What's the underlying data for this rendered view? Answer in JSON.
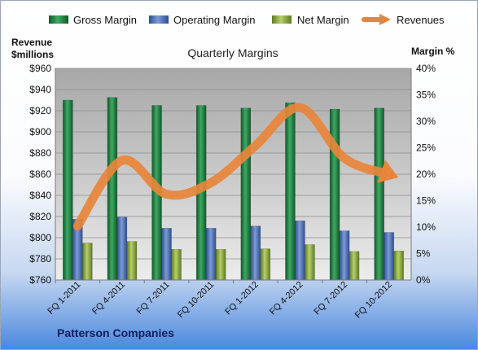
{
  "chart_data": {
    "type": "bar",
    "title": "Quarterly Margins",
    "left_axis_label_line1": "Revenue",
    "left_axis_label_line2": "$millions",
    "right_axis_label": "Margin %",
    "footer": "Patterson Companies",
    "categories": [
      "FQ 1-2011",
      "FQ 4-2011",
      "FQ 7-2011",
      "FQ 10-2011",
      "FQ 1-2012",
      "FQ 4-2012",
      "FQ 7-2012",
      "FQ 10-2012"
    ],
    "left_axis": {
      "min": 760,
      "max": 960,
      "step": 20,
      "tick_labels": [
        "$760",
        "$780",
        "$800",
        "$820",
        "$840",
        "$860",
        "$880",
        "$900",
        "$920",
        "$940",
        "$960"
      ]
    },
    "right_axis": {
      "min": 0,
      "max": 40,
      "step": 5,
      "tick_labels": [
        "0%",
        "5%",
        "10%",
        "15%",
        "20%",
        "25%",
        "30%",
        "35%",
        "40%"
      ]
    },
    "bar_series": [
      {
        "name": "Gross Margin",
        "axis": "right",
        "color": "#1b7a3e",
        "values": [
          34.0,
          34.5,
          33.0,
          33.0,
          32.5,
          33.5,
          32.3,
          32.5
        ]
      },
      {
        "name": "Operating Margin",
        "axis": "right",
        "color": "#4a6fb5",
        "values": [
          11.5,
          11.9,
          9.8,
          9.8,
          10.2,
          11.2,
          9.3,
          9.0
        ]
      },
      {
        "name": "Net Margin",
        "axis": "right",
        "color": "#8fae3e",
        "values": [
          7.0,
          7.3,
          5.8,
          5.8,
          5.9,
          6.7,
          5.4,
          5.5
        ]
      }
    ],
    "line_series": {
      "name": "Revenues",
      "axis": "left",
      "color": "#e8853a",
      "values": [
        811,
        873,
        841,
        852,
        887,
        923,
        875,
        860
      ]
    },
    "legend_position": "top",
    "grid": true
  }
}
